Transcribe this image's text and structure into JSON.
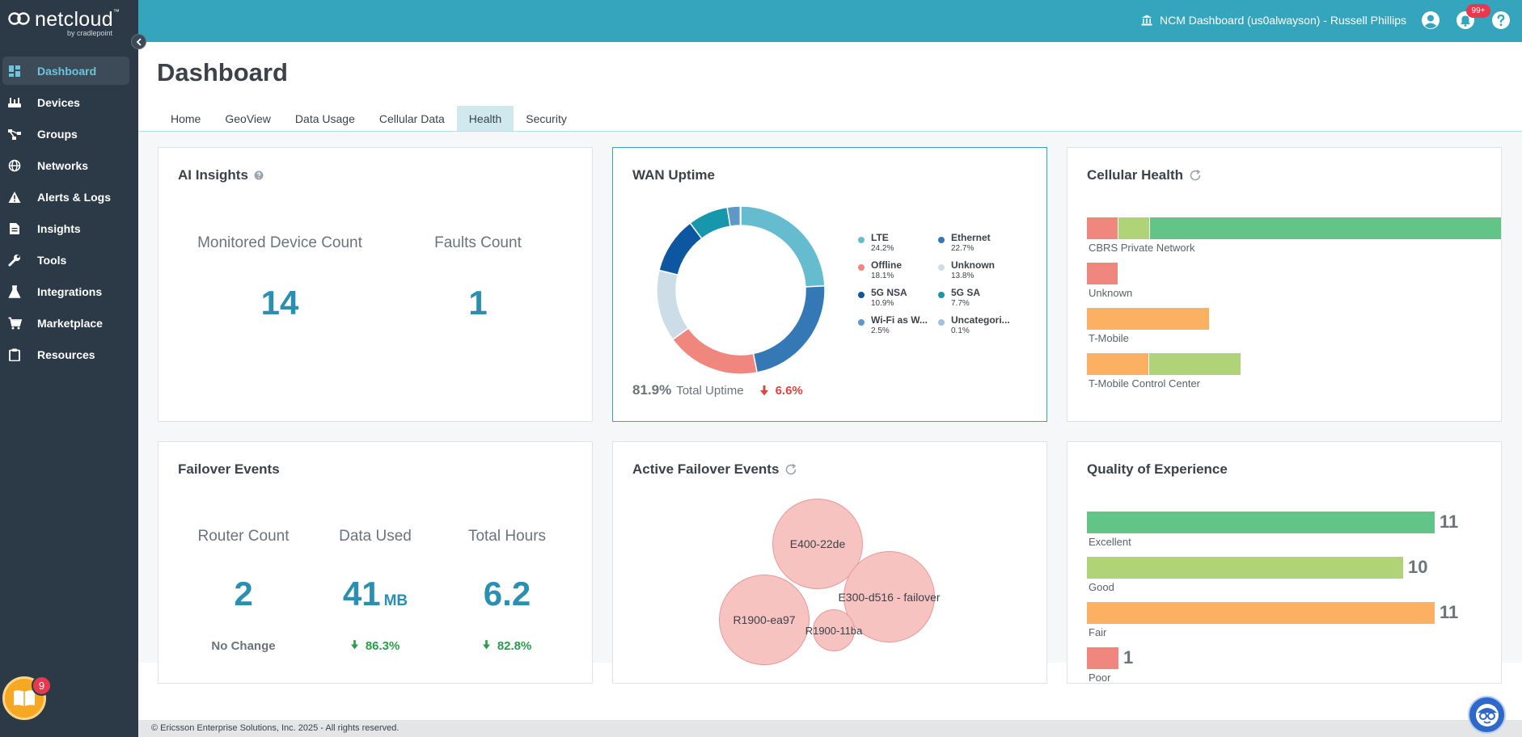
{
  "app": {
    "logo_text": "netcloud",
    "logo_sub": "by cradlepoint",
    "trademark": "™"
  },
  "sidebar": {
    "items": [
      {
        "label": "Dashboard",
        "icon": "dashboard-icon",
        "active": true
      },
      {
        "label": "Devices",
        "icon": "router-icon"
      },
      {
        "label": "Groups",
        "icon": "groups-icon"
      },
      {
        "label": "Networks",
        "icon": "globe-icon"
      },
      {
        "label": "Alerts & Logs",
        "icon": "alert-icon"
      },
      {
        "label": "Insights",
        "icon": "document-icon"
      },
      {
        "label": "Tools",
        "icon": "wrench-icon"
      },
      {
        "label": "Integrations",
        "icon": "flask-icon"
      },
      {
        "label": "Marketplace",
        "icon": "cart-icon"
      },
      {
        "label": "Resources",
        "icon": "clipboard-icon"
      }
    ],
    "book_badge": "9"
  },
  "header": {
    "account_label": "NCM Dashboard (us0alwayson) - Russell Phillips",
    "notification_badge": "99+"
  },
  "page": {
    "title": "Dashboard",
    "tabs": [
      "Home",
      "GeoView",
      "Data Usage",
      "Cellular Data",
      "Health",
      "Security"
    ],
    "active_tab": "Health"
  },
  "ai_insights": {
    "title": "AI Insights",
    "stats": [
      {
        "label": "Monitored Device Count",
        "value": "14"
      },
      {
        "label": "Faults Count",
        "value": "1"
      }
    ]
  },
  "wan_uptime": {
    "title": "WAN Uptime",
    "total_value": "81.9%",
    "total_label": "Total Uptime",
    "change": "6.6%",
    "segments": [
      {
        "name": "LTE",
        "pct": "24.2%",
        "value": 24.2,
        "color": "#66bccf"
      },
      {
        "name": "Ethernet",
        "pct": "22.7%",
        "value": 22.7,
        "color": "#3478b5"
      },
      {
        "name": "Offline",
        "pct": "18.1%",
        "value": 18.1,
        "color": "#f0877f"
      },
      {
        "name": "Unknown",
        "pct": "13.8%",
        "value": 13.8,
        "color": "#cddde8"
      },
      {
        "name": "5G NSA",
        "pct": "10.9%",
        "value": 10.9,
        "color": "#0d56a0"
      },
      {
        "name": "5G SA",
        "pct": "7.7%",
        "value": 7.7,
        "color": "#1797ab"
      },
      {
        "name": "Wi-Fi as W...",
        "pct": "2.5%",
        "value": 2.5,
        "color": "#5f97c5"
      },
      {
        "name": "Uncategori...",
        "pct": "0.1%",
        "value": 0.1,
        "color": "#9fc3df"
      }
    ]
  },
  "cellular_health": {
    "title": "Cellular Health",
    "colors": {
      "poor": "#f0877f",
      "fair": "#fcb062",
      "good": "#b1d377",
      "excellent": "#63c487"
    },
    "rows": [
      {
        "label": "CBRS Private Network",
        "segments": [
          {
            "key": "poor",
            "fraction": 0.07
          },
          {
            "key": "good",
            "fraction": 0.07
          },
          {
            "key": "excellent",
            "fraction": 0.86
          }
        ]
      },
      {
        "label": "Unknown",
        "segments": [
          {
            "key": "poor",
            "fraction": 0.07
          }
        ]
      },
      {
        "label": "T-Mobile",
        "segments": [
          {
            "key": "fair",
            "fraction": 0.28
          }
        ]
      },
      {
        "label": "T-Mobile Control Center",
        "segments": [
          {
            "key": "fair",
            "fraction": 0.14
          },
          {
            "key": "good",
            "fraction": 0.21
          }
        ]
      }
    ]
  },
  "failover_events": {
    "title": "Failover Events",
    "stats": [
      {
        "label": "Router Count",
        "value": "2",
        "unit": "",
        "change": "No Change",
        "trend": "none"
      },
      {
        "label": "Data Used",
        "value": "41",
        "unit": "MB",
        "change": "86.3%",
        "trend": "down"
      },
      {
        "label": "Total Hours",
        "value": "6.2",
        "unit": "",
        "change": "82.8%",
        "trend": "down"
      }
    ]
  },
  "active_failover": {
    "title": "Active Failover Events",
    "bubbles": [
      {
        "label": "E400-22de"
      },
      {
        "label": "E300-d516 - failover"
      },
      {
        "label": "R1900-ea97"
      },
      {
        "label": "R1900-11ba"
      }
    ]
  },
  "qoe": {
    "title": "Quality of Experience",
    "max": 11,
    "rows": [
      {
        "label": "Excellent",
        "value": 11,
        "display": "11",
        "color": "#63c487"
      },
      {
        "label": "Good",
        "value": 10,
        "display": "10",
        "color": "#b1d377"
      },
      {
        "label": "Fair",
        "value": 11,
        "display": "11",
        "color": "#fcb062"
      },
      {
        "label": "Poor",
        "value": 1,
        "display": "1",
        "color": "#f0877f"
      }
    ]
  },
  "footer": {
    "copyright": "© Ericsson Enterprise Solutions, Inc. 2025 - All rights reserved."
  }
}
